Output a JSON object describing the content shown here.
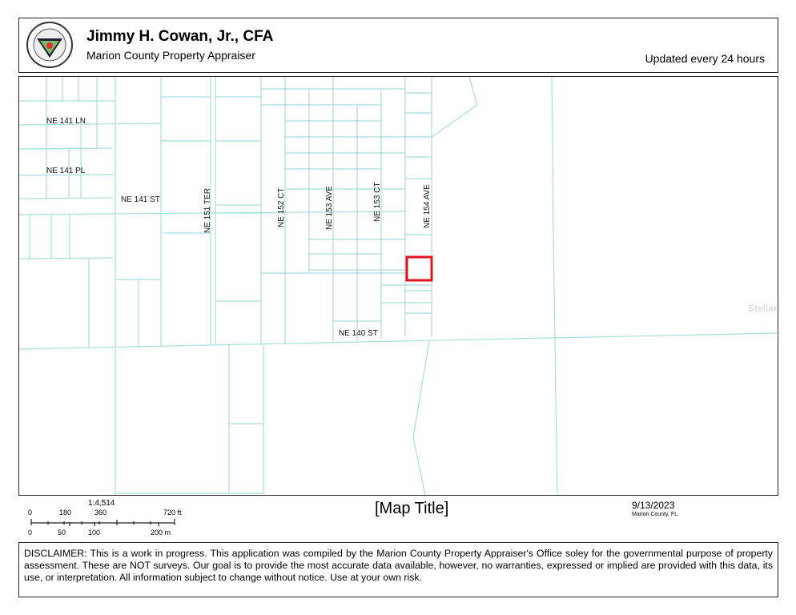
{
  "header": {
    "title": "Jimmy H. Cowan, Jr., CFA",
    "subtitle": "Marion County Property Appraiser",
    "update_note": "Updated every 24 hours",
    "logo_text": "PROPERTY APPRAISER - MARION COUNTY, FLORIDA"
  },
  "map": {
    "streets": [
      "NE 141 LN",
      "NE 141 PL",
      "NE 141 ST",
      "NE 151 TER",
      "NE 152 CT",
      "NE 153 AVE",
      "NE 153 CT",
      "NE 154 AVE",
      "NE 140 ST"
    ],
    "watermark": "StellarMLS",
    "parcel_color": "#a9dedb",
    "highlight_color": "#e0141e"
  },
  "scale": {
    "ratio": "1:4,514",
    "ft_ticks": [
      "0",
      "180",
      "360",
      "720 ft"
    ],
    "m_ticks": [
      "0",
      "50",
      "100",
      "200 m"
    ]
  },
  "map_title": "[Map Title]",
  "date": "9/13/2023",
  "county": "Marion County, FL",
  "disclaimer": "DISCLAIMER: This is a work in progress. This application was compiled by the Marion County Property Appraiser's Office soley for the governmental purpose of property assessment. These are NOT surveys. Our goal is to provide the most accurate data available, however, no warranties, expressed or implied are provided with this data, its use, or interpretation. All information subject to change without notice. Use at your own risk."
}
